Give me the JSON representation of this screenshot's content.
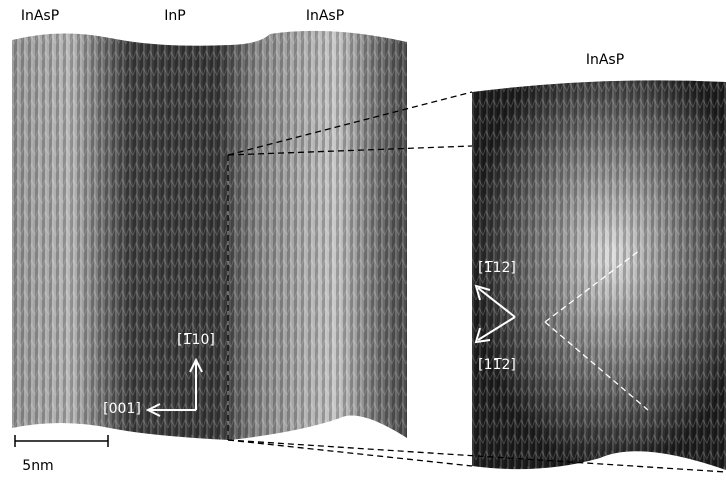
{
  "region_labels": [
    "InAsP",
    "InP",
    "InAsP"
  ],
  "zoom_label": "InAsP",
  "left_directions": {
    "vertical": "[1̅10]",
    "horizontal": "[001]"
  },
  "right_directions": {
    "upper": "[1̅12]",
    "lower": "[11̅2]"
  },
  "scale_bar": "5nm"
}
